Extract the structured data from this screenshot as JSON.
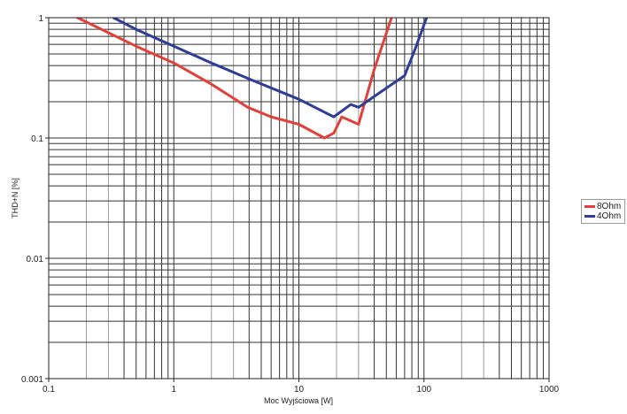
{
  "chart_data": {
    "type": "line",
    "title": "",
    "xlabel": "Moc Wyjściowa [W]",
    "ylabel": "THD+N [%]",
    "xscale": "log",
    "yscale": "log",
    "xlim": [
      0.1,
      1000
    ],
    "ylim": [
      0.001,
      1
    ],
    "x_ticks": [
      "0.1",
      "1",
      "10",
      "100",
      "1000"
    ],
    "y_ticks": [
      "1",
      "0.1",
      "0.01",
      "0.001"
    ],
    "grid": true,
    "legend_position": "right",
    "series": [
      {
        "name": "8Ohm",
        "color": "#e0413a",
        "points": [
          [
            0.17,
            1.0
          ],
          [
            0.3,
            0.75
          ],
          [
            0.5,
            0.58
          ],
          [
            1.0,
            0.42
          ],
          [
            2.0,
            0.28
          ],
          [
            3.9,
            0.18
          ],
          [
            6.0,
            0.15
          ],
          [
            10,
            0.13
          ],
          [
            16,
            0.1
          ],
          [
            19,
            0.11
          ],
          [
            22,
            0.15
          ],
          [
            30,
            0.13
          ],
          [
            40,
            0.37
          ],
          [
            55,
            1.0
          ]
        ]
      },
      {
        "name": "4Ohm",
        "color": "#2e3d96",
        "points": [
          [
            0.33,
            1.0
          ],
          [
            0.5,
            0.8
          ],
          [
            1.0,
            0.58
          ],
          [
            2.0,
            0.42
          ],
          [
            4.0,
            0.31
          ],
          [
            10,
            0.21
          ],
          [
            19,
            0.15
          ],
          [
            26,
            0.19
          ],
          [
            30,
            0.18
          ],
          [
            50,
            0.26
          ],
          [
            70,
            0.33
          ],
          [
            85,
            0.55
          ],
          [
            105,
            1.0
          ]
        ]
      }
    ]
  },
  "legend": {
    "items": [
      {
        "label": "8Ohm",
        "color": "#e0413a"
      },
      {
        "label": "4Ohm",
        "color": "#2e3d96"
      }
    ]
  }
}
